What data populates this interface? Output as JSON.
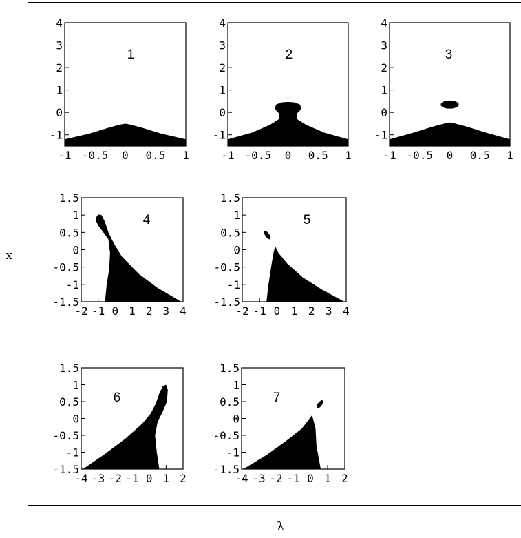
{
  "xlabel": "λ",
  "ylabel": "x",
  "chart_data": [
    {
      "type": "area",
      "label": "1",
      "xlim": [
        -1,
        1
      ],
      "ylim": [
        -1.5,
        4
      ],
      "xticks": [
        "-1",
        "-0.5",
        "0",
        "0.5",
        "1"
      ],
      "yticks": [
        "-1",
        "0",
        "1",
        "2",
        "3",
        "4"
      ],
      "regions": [
        {
          "kind": "upper",
          "points": [
            [
              -1,
              -1.2
            ],
            [
              -0.6,
              -0.95
            ],
            [
              -0.3,
              -0.7
            ],
            [
              -0.1,
              -0.55
            ],
            [
              0,
              -0.5
            ],
            [
              0.1,
              -0.55
            ],
            [
              0.3,
              -0.7
            ],
            [
              0.6,
              -0.95
            ],
            [
              1,
              -1.2
            ]
          ]
        }
      ]
    },
    {
      "type": "area",
      "label": "2",
      "xlim": [
        -1,
        1
      ],
      "ylim": [
        -1.5,
        4
      ],
      "xticks": [
        "-1",
        "-0.5",
        "0",
        "0.5",
        "1"
      ],
      "yticks": [
        "-1",
        "0",
        "1",
        "2",
        "3",
        "4"
      ],
      "regions": [
        {
          "kind": "polygon",
          "points": [
            [
              -1,
              -1.5
            ],
            [
              -1,
              -1.2
            ],
            [
              -0.6,
              -0.9
            ],
            [
              -0.3,
              -0.55
            ],
            [
              -0.15,
              -0.3
            ],
            [
              -0.15,
              -0.05
            ],
            [
              -0.22,
              0.15
            ],
            [
              -0.2,
              0.35
            ],
            [
              -0.1,
              0.45
            ],
            [
              0,
              0.47
            ],
            [
              0.1,
              0.45
            ],
            [
              0.2,
              0.35
            ],
            [
              0.22,
              0.15
            ],
            [
              0.15,
              -0.05
            ],
            [
              0.15,
              -0.3
            ],
            [
              0.3,
              -0.55
            ],
            [
              0.6,
              -0.9
            ],
            [
              1,
              -1.2
            ],
            [
              1,
              -1.5
            ]
          ]
        }
      ]
    },
    {
      "type": "area",
      "label": "3",
      "xlim": [
        -1,
        1
      ],
      "ylim": [
        -1.5,
        4
      ],
      "xticks": [
        "-1",
        "-0.5",
        "0",
        "0.5",
        "1"
      ],
      "yticks": [
        "-1",
        "0",
        "1",
        "2",
        "3",
        "4"
      ],
      "regions": [
        {
          "kind": "upper",
          "points": [
            [
              -1,
              -1.2
            ],
            [
              -0.6,
              -0.9
            ],
            [
              -0.3,
              -0.65
            ],
            [
              -0.1,
              -0.5
            ],
            [
              0,
              -0.45
            ],
            [
              0.1,
              -0.5
            ],
            [
              0.3,
              -0.65
            ],
            [
              0.6,
              -0.9
            ],
            [
              1,
              -1.2
            ]
          ]
        },
        {
          "kind": "ellipse",
          "cx": 0,
          "cy": 0.35,
          "rx": 0.15,
          "ry": 0.18
        }
      ]
    },
    {
      "type": "area",
      "label": "4",
      "xlim": [
        -2,
        4
      ],
      "ylim": [
        -1.5,
        1.5
      ],
      "xticks": [
        "-2",
        "-1",
        "0",
        "1",
        "2",
        "3",
        "4"
      ],
      "yticks": [
        "-1.5",
        "-1",
        "-0.5",
        "0",
        "0.5",
        "1",
        "1.5"
      ],
      "regions": [
        {
          "kind": "polygon",
          "points": [
            [
              -1.1,
              0.95
            ],
            [
              -1,
              1.02
            ],
            [
              -0.8,
              1.0
            ],
            [
              -0.6,
              0.8
            ],
            [
              -0.4,
              0.5
            ],
            [
              -0.1,
              0.2
            ],
            [
              0.4,
              -0.2
            ],
            [
              1.4,
              -0.7
            ],
            [
              2.5,
              -1.1
            ],
            [
              3.9,
              -1.5
            ],
            [
              -0.6,
              -1.5
            ],
            [
              -0.5,
              -1.0
            ],
            [
              -0.35,
              -0.55
            ],
            [
              -0.3,
              -0.1
            ],
            [
              -0.4,
              0.3
            ],
            [
              -0.7,
              0.5
            ],
            [
              -1.0,
              0.7
            ],
            [
              -1.15,
              0.85
            ]
          ]
        }
      ]
    },
    {
      "type": "area",
      "label": "5",
      "xlim": [
        -2,
        4
      ],
      "ylim": [
        -1.5,
        1.5
      ],
      "xticks": [
        "-2",
        "-1",
        "0",
        "1",
        "2",
        "3",
        "4"
      ],
      "yticks": [
        "-1.5",
        "-1",
        "-0.5",
        "0",
        "0.5",
        "1",
        "1.5"
      ],
      "regions": [
        {
          "kind": "polygon",
          "points": [
            [
              -0.6,
              -1.5
            ],
            [
              -0.5,
              -1.05
            ],
            [
              -0.35,
              -0.55
            ],
            [
              -0.2,
              -0.1
            ],
            [
              -0.1,
              0.1
            ],
            [
              0.1,
              -0.1
            ],
            [
              0.6,
              -0.4
            ],
            [
              1.5,
              -0.8
            ],
            [
              2.6,
              -1.15
            ],
            [
              3.9,
              -1.5
            ]
          ]
        },
        {
          "kind": "ellipse",
          "cx": -0.55,
          "cy": 0.42,
          "rx": 0.12,
          "ry": 0.14,
          "rotate": -35
        }
      ]
    },
    {
      "type": "area",
      "label": "6",
      "xlim": [
        -4,
        2
      ],
      "ylim": [
        -1.5,
        1.5
      ],
      "xticks": [
        "-4",
        "-3",
        "-2",
        "-1",
        "0",
        "1",
        "2"
      ],
      "yticks": [
        "-1.5",
        "-1",
        "-0.5",
        "0",
        "0.5",
        "1",
        "1.5"
      ],
      "regions": [
        {
          "kind": "polygon",
          "points": [
            [
              -3.9,
              -1.5
            ],
            [
              -2.6,
              -1.05
            ],
            [
              -1.4,
              -0.6
            ],
            [
              -0.4,
              -0.15
            ],
            [
              0.1,
              0.15
            ],
            [
              0.4,
              0.45
            ],
            [
              0.6,
              0.75
            ],
            [
              0.8,
              0.95
            ],
            [
              1.0,
              1.0
            ],
            [
              1.1,
              0.85
            ],
            [
              1.05,
              0.5
            ],
            [
              0.8,
              0.2
            ],
            [
              0.5,
              -0.1
            ],
            [
              0.35,
              -0.5
            ],
            [
              0.45,
              -1.0
            ],
            [
              0.6,
              -1.5
            ]
          ]
        }
      ]
    },
    {
      "type": "area",
      "label": "7",
      "xlim": [
        -4,
        2
      ],
      "ylim": [
        -1.5,
        1.5
      ],
      "xticks": [
        "-4",
        "-3",
        "-2",
        "-1",
        "0",
        "1",
        "2"
      ],
      "yticks": [
        "-1.5",
        "-1",
        "-0.5",
        "0",
        "0.5",
        "1",
        "1.5"
      ],
      "regions": [
        {
          "kind": "polygon",
          "points": [
            [
              -3.9,
              -1.5
            ],
            [
              -2.6,
              -1.1
            ],
            [
              -1.5,
              -0.7
            ],
            [
              -0.5,
              -0.3
            ],
            [
              0.1,
              0.1
            ],
            [
              0.3,
              -0.3
            ],
            [
              0.35,
              -0.8
            ],
            [
              0.6,
              -1.5
            ]
          ]
        },
        {
          "kind": "ellipse",
          "cx": 0.55,
          "cy": 0.42,
          "rx": 0.12,
          "ry": 0.14,
          "rotate": 35
        }
      ]
    }
  ]
}
